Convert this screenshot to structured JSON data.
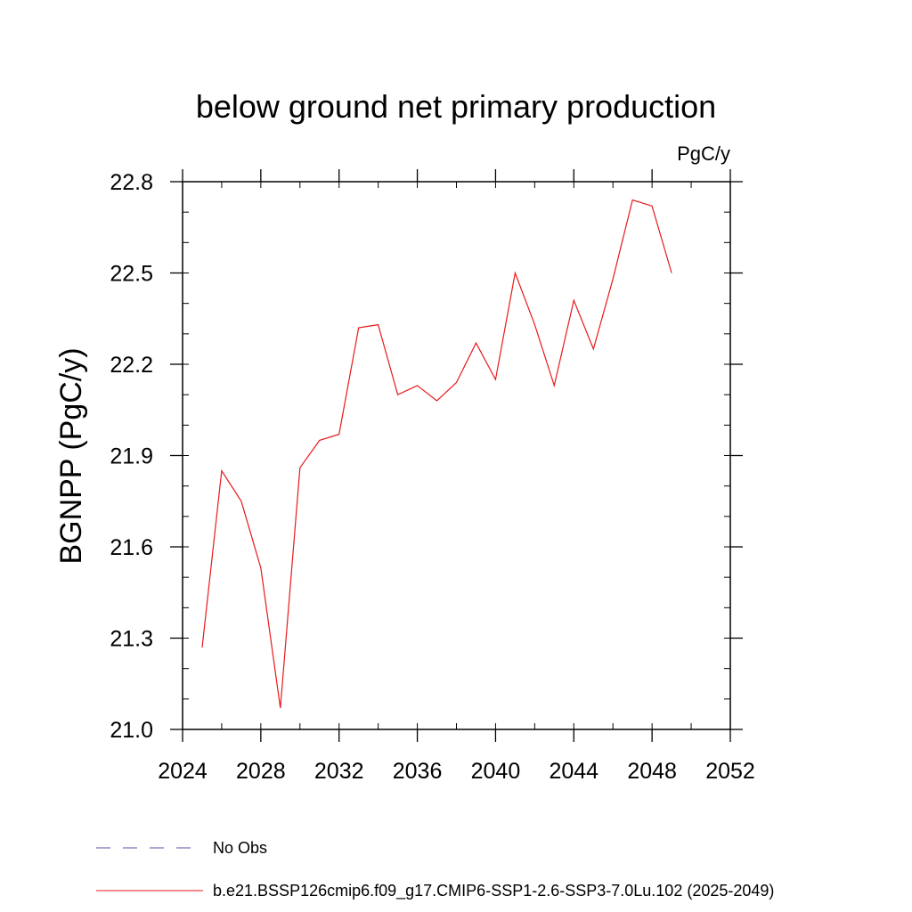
{
  "chart_data": {
    "type": "line",
    "title": "below ground net primary production",
    "units_label": "PgC/y",
    "ylabel": "BGNPP  (PgC/y)",
    "xlabel": "",
    "xlim": [
      2024,
      2052
    ],
    "ylim": [
      21.0,
      22.8
    ],
    "x_ticks": [
      2024,
      2028,
      2032,
      2036,
      2040,
      2044,
      2048,
      2052
    ],
    "x_minor_step": 2,
    "y_ticks": [
      "21.0",
      "21.3",
      "21.6",
      "21.9",
      "22.2",
      "22.5",
      "22.8"
    ],
    "y_minor_step": 0.1,
    "grid": false,
    "legend_position": "bottom",
    "series": [
      {
        "name": "b.e21.BSSP126cmip6.f09_g17.CMIP6-SSP1-2.6-SSP3-7.0Lu.102 (2025-2049)",
        "color": "#e8191b",
        "style": "solid",
        "x": [
          2025,
          2026,
          2027,
          2028,
          2029,
          2030,
          2031,
          2032,
          2033,
          2034,
          2035,
          2036,
          2037,
          2038,
          2039,
          2040,
          2041,
          2042,
          2043,
          2044,
          2045,
          2046,
          2047,
          2048,
          2049
        ],
        "values": [
          21.27,
          21.85,
          21.75,
          21.53,
          21.07,
          21.86,
          21.95,
          21.97,
          22.32,
          22.33,
          22.1,
          22.13,
          22.08,
          22.14,
          22.27,
          22.15,
          22.5,
          22.33,
          22.13,
          22.41,
          22.25,
          22.48,
          22.74,
          22.72,
          22.5
        ]
      }
    ],
    "legend": [
      {
        "label": "No Obs",
        "color": "#5b4ea6",
        "style": "dashed"
      },
      {
        "label": "b.e21.BSSP126cmip6.f09_g17.CMIP6-SSP1-2.6-SSP3-7.0Lu.102 (2025-2049)",
        "color": "#e8191b",
        "style": "solid"
      }
    ]
  }
}
